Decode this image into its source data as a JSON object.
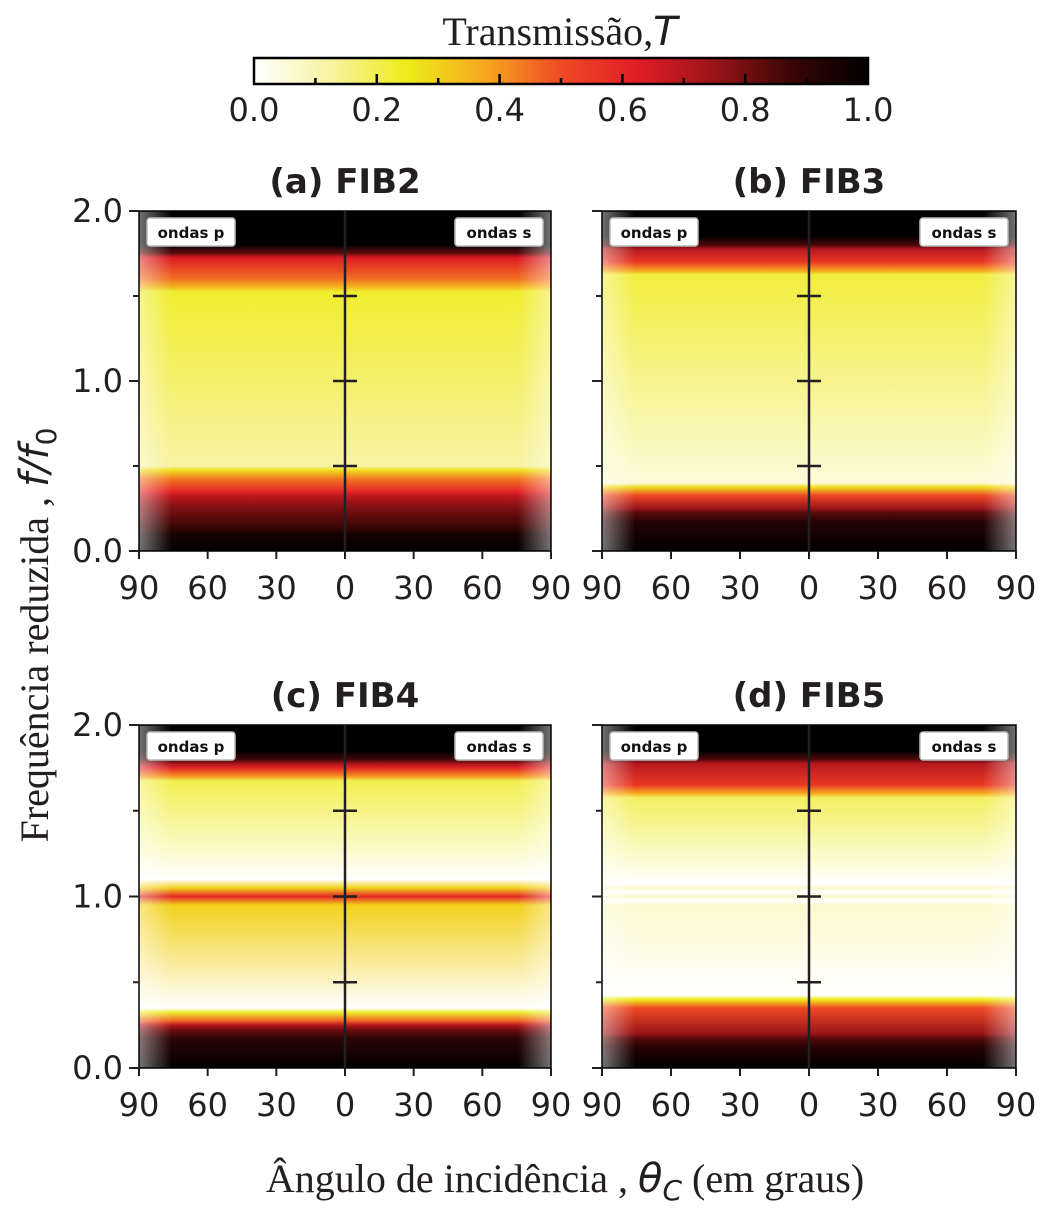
{
  "figure": {
    "colorbar": {
      "label": "Transmissão,",
      "label_symbol": "T",
      "ticks": [
        "0.0",
        "0.2",
        "0.4",
        "0.6",
        "0.8",
        "1.0"
      ],
      "range": [
        0,
        1
      ],
      "colormap": "hot_r",
      "stops": [
        "#ffffff",
        "#f8f3a0",
        "#eeec1a",
        "#f7a81e",
        "#ee4a24",
        "#e11d26",
        "#9a1418",
        "#3a0505",
        "#000000"
      ]
    },
    "ylabel_text": "Frequência reduzida , ",
    "ylabel_symbol": "f/f",
    "ylabel_sub": "0",
    "xlabel_text": "Ângulo de incidência , ",
    "xlabel_symbol": "θ",
    "xlabel_sub": "C",
    "xlabel_suffix": " (em graus)",
    "x_tick_labels": [
      "90",
      "60",
      "30",
      "0",
      "30",
      "60",
      "90"
    ],
    "y_tick_labels": [
      "0.0",
      "1.0",
      "2.0"
    ],
    "left_tag": "ondas p",
    "right_tag": "ondas s"
  },
  "chart_data": [
    {
      "type": "heatmap",
      "title": "(a) FIB2",
      "xlabel": "Ângulo de incidência, θC (em graus)",
      "ylabel": "Frequência reduzida, f/f0",
      "x_range_left_panel": [
        90,
        0
      ],
      "x_range_right_panel": [
        0,
        90
      ],
      "ylim": [
        0.0,
        2.0
      ],
      "y_ticks": [
        0.0,
        1.0,
        2.0
      ],
      "grid": false,
      "panels": [
        "ondas p",
        "ondas s"
      ],
      "band_edges_f": {
        "lower_band_top_at_0deg": 0.5,
        "upper_band_bottom_at_0deg": 1.5
      },
      "bands": [
        {
          "f_start": 0.0,
          "f_end": 0.12,
          "transmission": 1.0
        },
        {
          "f_start": 0.12,
          "f_end": 0.3,
          "transmission": 0.85
        },
        {
          "f_start": 0.3,
          "f_end": 0.45,
          "transmission": 0.6
        },
        {
          "f_start": 0.45,
          "f_end": 1.55,
          "transmission": 0.12
        },
        {
          "f_start": 1.55,
          "f_end": 1.75,
          "transmission": 0.45
        },
        {
          "f_start": 1.75,
          "f_end": 2.0,
          "transmission": 1.0
        }
      ]
    },
    {
      "type": "heatmap",
      "title": "(b) FIB3",
      "xlabel": "Ângulo de incidência, θC (em graus)",
      "ylabel": "Frequência reduzida, f/f0",
      "x_range_left_panel": [
        90,
        0
      ],
      "x_range_right_panel": [
        0,
        90
      ],
      "ylim": [
        0.0,
        2.0
      ],
      "grid": false,
      "panels": [
        "ondas p",
        "ondas s"
      ],
      "bands": [
        {
          "f_start": 0.0,
          "f_end": 0.2,
          "transmission": 1.0
        },
        {
          "f_start": 0.2,
          "f_end": 0.35,
          "transmission": 0.75
        },
        {
          "f_start": 0.35,
          "f_end": 1.65,
          "transmission": 0.05
        },
        {
          "f_start": 1.65,
          "f_end": 1.8,
          "transmission": 0.55
        },
        {
          "f_start": 1.8,
          "f_end": 2.0,
          "transmission": 1.0
        }
      ]
    },
    {
      "type": "heatmap",
      "title": "(c) FIB4",
      "xlabel": "Ângulo de incidência, θC (em graus)",
      "ylabel": "Frequência reduzida, f/f0",
      "x_range_left_panel": [
        90,
        0
      ],
      "x_range_right_panel": [
        0,
        90
      ],
      "ylim": [
        0.0,
        2.0
      ],
      "grid": false,
      "panels": [
        "ondas p",
        "ondas s"
      ],
      "bands": [
        {
          "f_start": 0.0,
          "f_end": 0.2,
          "transmission": 1.0
        },
        {
          "f_start": 0.2,
          "f_end": 0.3,
          "transmission": 0.7
        },
        {
          "f_start": 0.3,
          "f_end": 0.98,
          "transmission": 0.0
        },
        {
          "f_start": 0.98,
          "f_end": 1.04,
          "transmission": 0.9
        },
        {
          "f_start": 1.04,
          "f_end": 1.7,
          "transmission": 0.0
        },
        {
          "f_start": 1.7,
          "f_end": 1.8,
          "transmission": 0.6
        },
        {
          "f_start": 1.8,
          "f_end": 2.0,
          "transmission": 1.0
        }
      ]
    },
    {
      "type": "heatmap",
      "title": "(d) FIB5",
      "xlabel": "Ângulo de incidência, θC (em graus)",
      "ylabel": "Frequência reduzida, f/f0",
      "x_range_left_panel": [
        90,
        0
      ],
      "x_range_right_panel": [
        0,
        90
      ],
      "ylim": [
        0.0,
        2.0
      ],
      "grid": false,
      "panels": [
        "ondas p",
        "ondas s"
      ],
      "bands": [
        {
          "f_start": 0.0,
          "f_end": 0.15,
          "transmission": 1.0
        },
        {
          "f_start": 0.15,
          "f_end": 0.38,
          "transmission": 0.75
        },
        {
          "f_start": 0.38,
          "f_end": 1.6,
          "transmission": 0.0
        },
        {
          "f_start": 0.99,
          "f_end": 1.01,
          "transmission": 0.2
        },
        {
          "f_start": 1.6,
          "f_end": 1.8,
          "transmission": 0.55
        },
        {
          "f_start": 1.8,
          "f_end": 2.0,
          "transmission": 1.0
        }
      ]
    }
  ]
}
